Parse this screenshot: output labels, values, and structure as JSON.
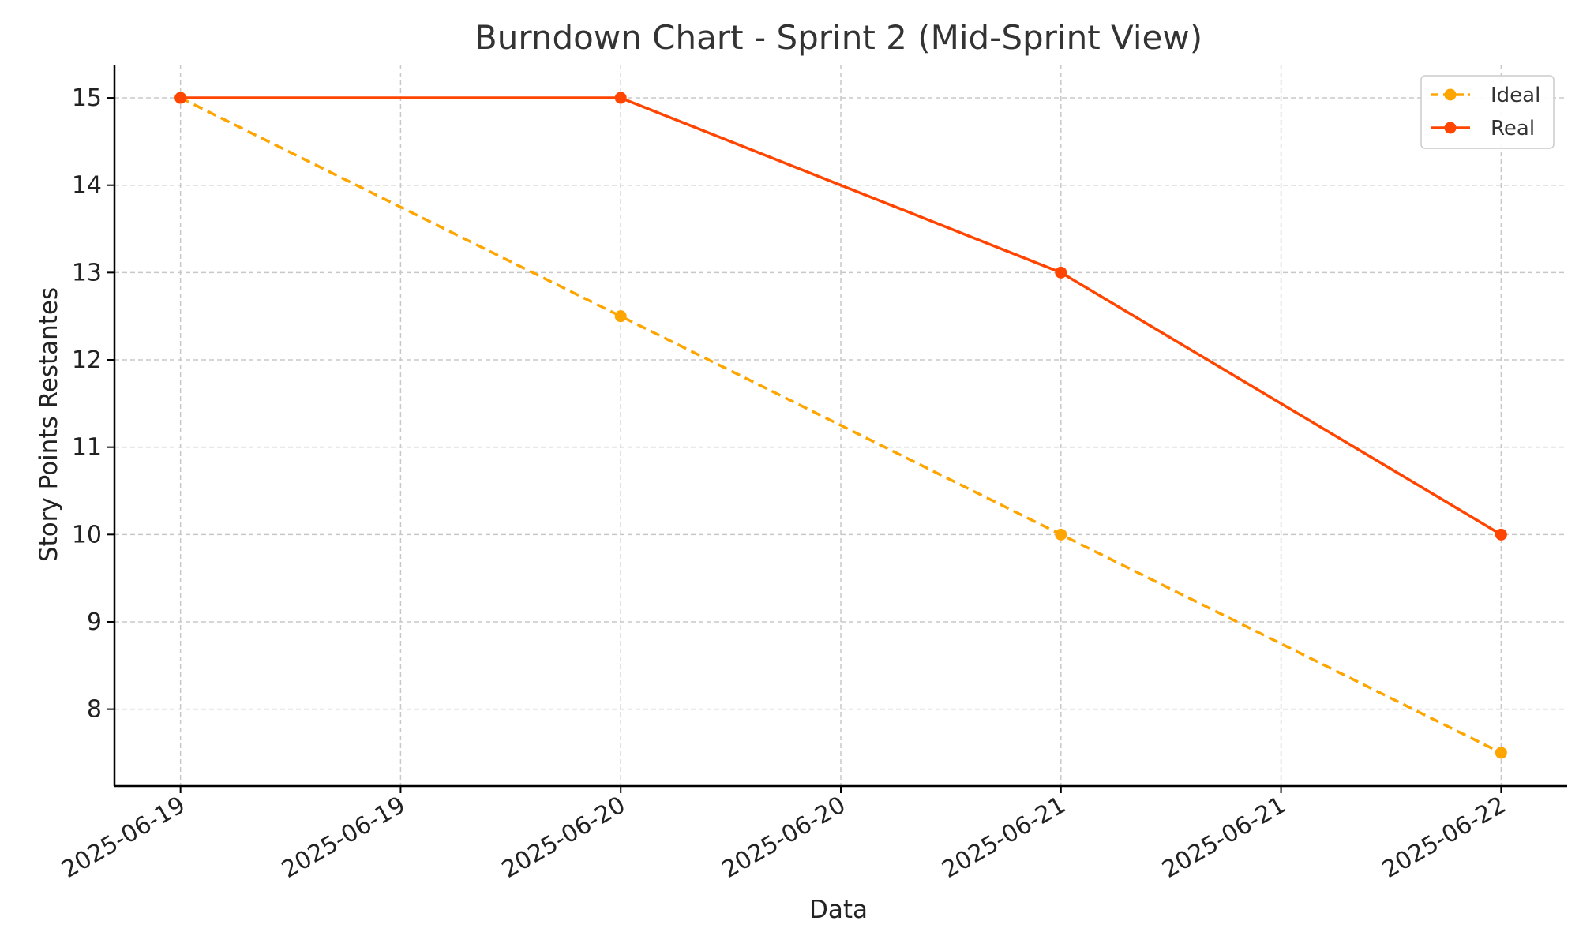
{
  "chart_data": {
    "type": "line",
    "title": "Burndown Chart - Sprint 2 (Mid-Sprint View)",
    "xlabel": "Data",
    "ylabel": "Story Points Restantes",
    "x": [
      "2025-06-19",
      "2025-06-20",
      "2025-06-21",
      "2025-06-22"
    ],
    "x_tick_labels": [
      "2025-06-19",
      "2025-06-19",
      "2025-06-20",
      "2025-06-20",
      "2025-06-21",
      "2025-06-21",
      "2025-06-22"
    ],
    "x_tick_positions_days": [
      0,
      0.5,
      1,
      1.5,
      2,
      2.5,
      3
    ],
    "y_ticks": [
      8,
      9,
      10,
      11,
      12,
      13,
      14,
      15
    ],
    "ylim": [
      7.12,
      15.38
    ],
    "xlim": [
      -0.15,
      3.15
    ],
    "grid": true,
    "legend_position": "top-right",
    "series": [
      {
        "name": "Ideal",
        "values": [
          15,
          12.5,
          10,
          7.5
        ],
        "color": "#FFA500",
        "line_style": "dashed",
        "marker": "circle"
      },
      {
        "name": "Real",
        "values": [
          15,
          15,
          13,
          10
        ],
        "color": "#FF4500",
        "line_style": "solid",
        "marker": "circle"
      }
    ]
  }
}
